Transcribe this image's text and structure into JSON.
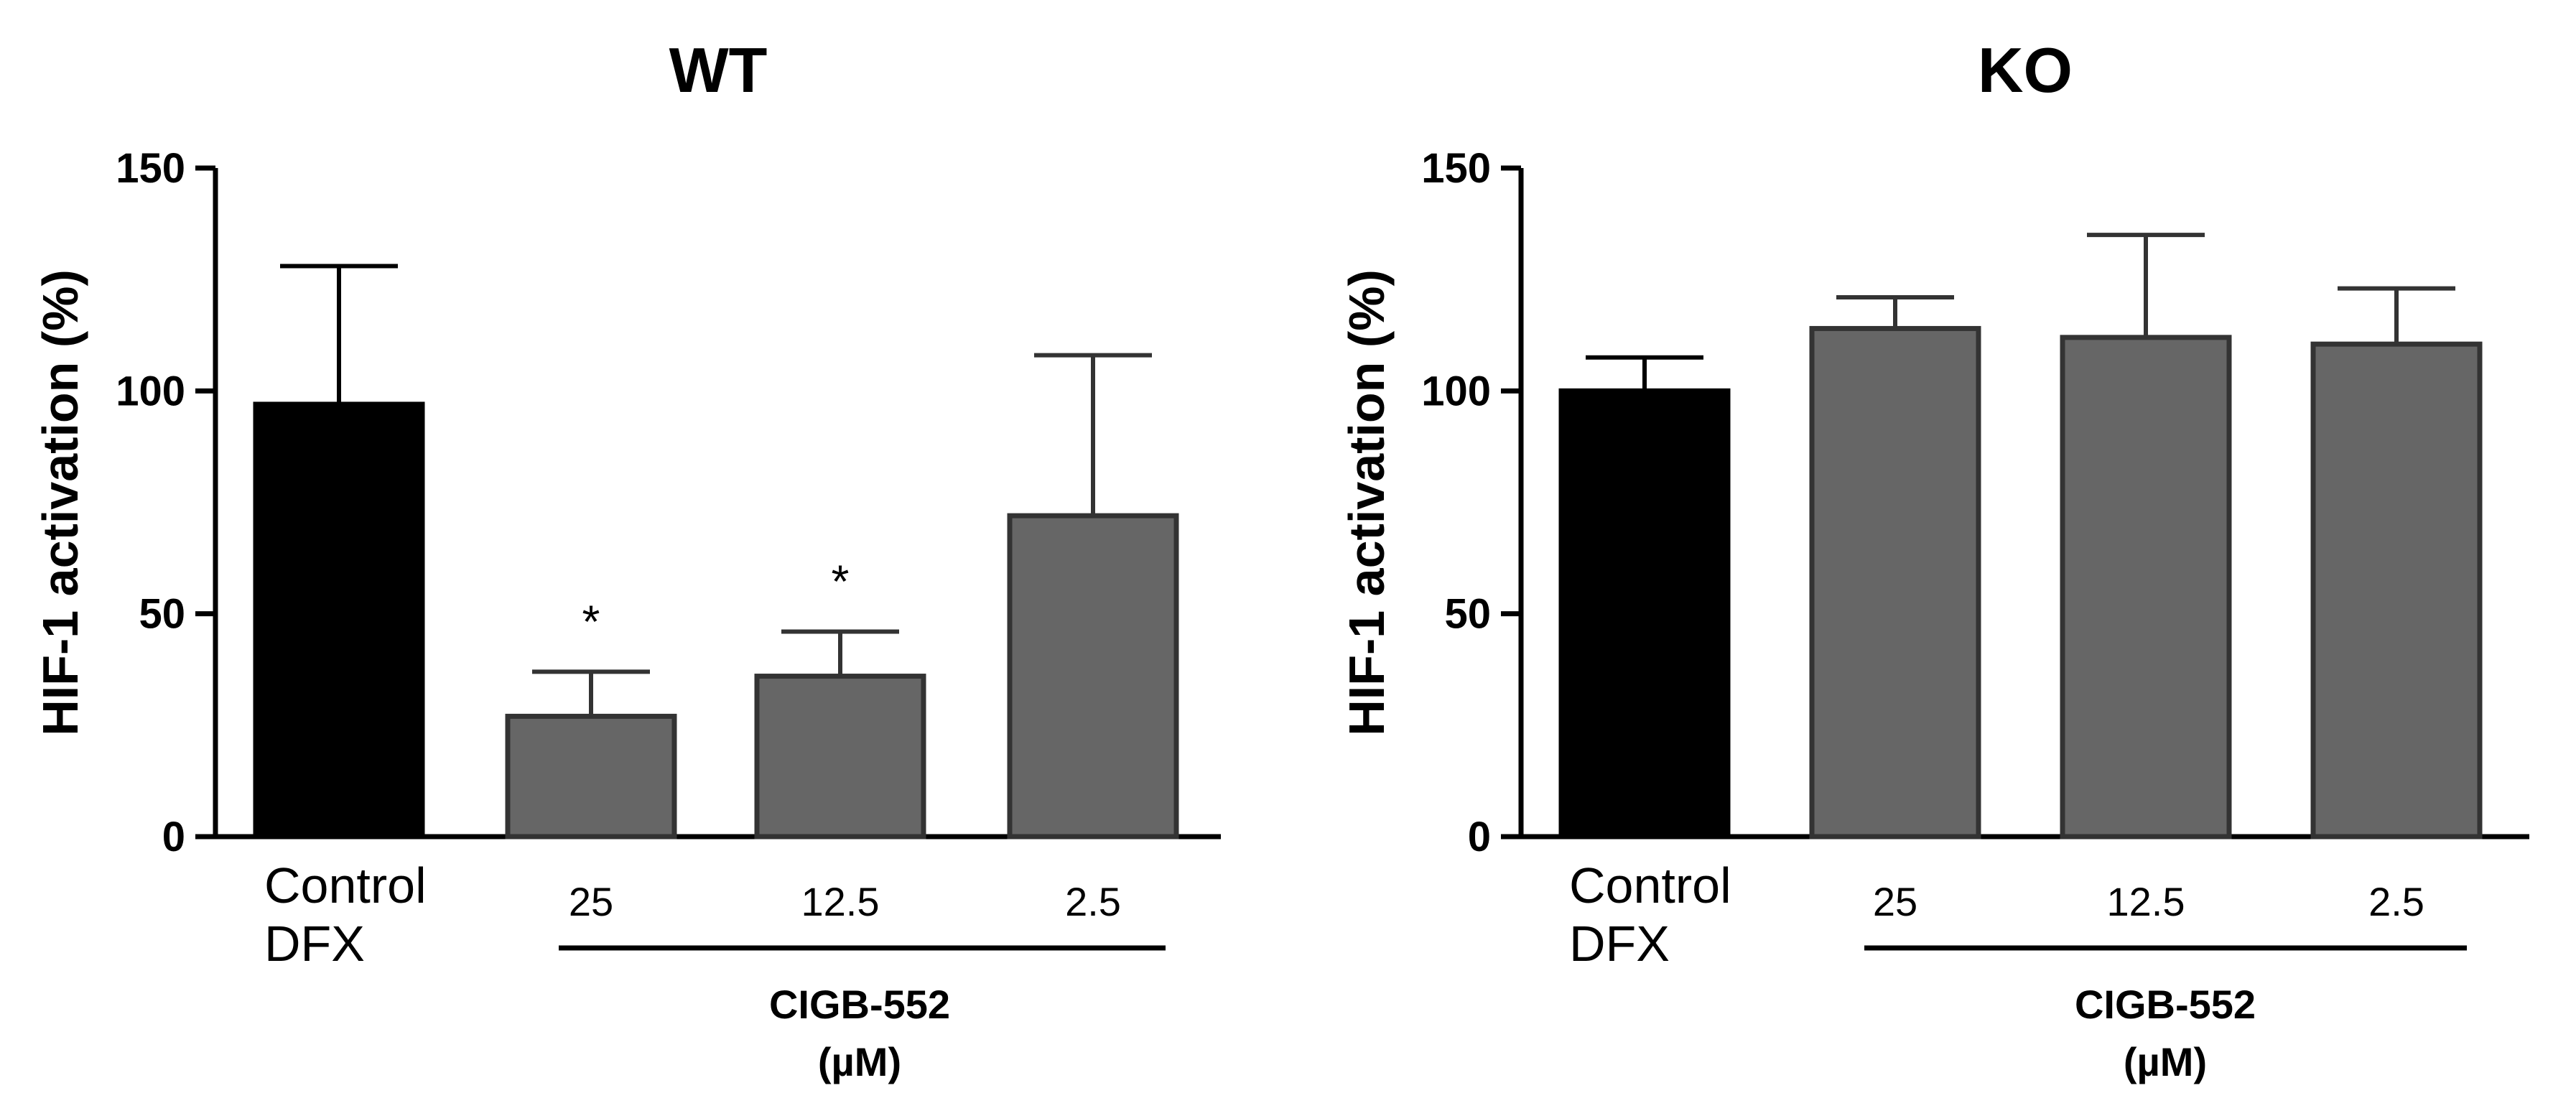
{
  "chart_data": [
    {
      "type": "bar",
      "title": "WT",
      "ylabel": "HIF-1 activation (%)",
      "ylim": [
        0,
        150
      ],
      "yticks": [
        0,
        50,
        100,
        150
      ],
      "grid": false,
      "categories": [
        "Control DFX",
        "25",
        "12.5",
        "2.5"
      ],
      "control_label_lines": [
        "Control",
        "DFX"
      ],
      "values": [
        97,
        27,
        36,
        72
      ],
      "errors": [
        31,
        10,
        10,
        36
      ],
      "significance": [
        "",
        "*",
        "*",
        ""
      ],
      "bar_colors": [
        "#000000",
        "#666666",
        "#666666",
        "#666666"
      ],
      "group_label": [
        "CIGB-552",
        "(µM)"
      ]
    },
    {
      "type": "bar",
      "title": "KO",
      "ylabel": "HIF-1 activation (%)",
      "ylim": [
        0,
        150
      ],
      "yticks": [
        0,
        50,
        100,
        150
      ],
      "grid": false,
      "categories": [
        "Control DFX",
        "25",
        "12.5",
        "2.5"
      ],
      "control_label_lines": [
        "Control",
        "DFX"
      ],
      "values": [
        100,
        114,
        112,
        110.5
      ],
      "errors": [
        7.5,
        7,
        23,
        12.5
      ],
      "significance": [
        "",
        "",
        "",
        ""
      ],
      "bar_colors": [
        "#000000",
        "#666666",
        "#666666",
        "#666666"
      ],
      "group_label": [
        "CIGB-552",
        "(µM)"
      ]
    }
  ]
}
